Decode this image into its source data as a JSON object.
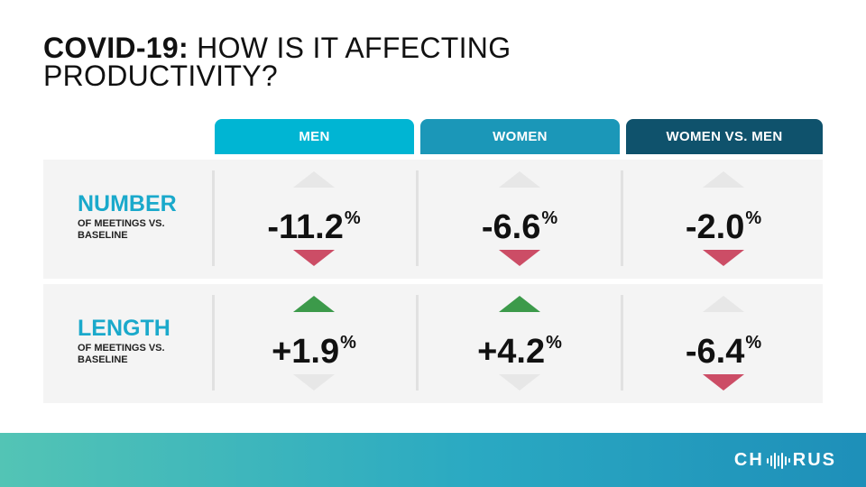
{
  "title": {
    "bold": "COVID-19:",
    "rest_line1": "HOW IS IT AFFECTING",
    "line2": "PRODUCTIVITY?"
  },
  "colors": {
    "men": "#00b5d3",
    "women": "#1b97b8",
    "women_vs_men": "#0f526c",
    "up": "#3c9a4a",
    "down": "#cc4d66",
    "inactive": "#e7e7e7",
    "accent": "#1aa9cb"
  },
  "columns": [
    {
      "label": "MEN"
    },
    {
      "label": "WOMEN"
    },
    {
      "label": "WOMEN VS. MEN"
    }
  ],
  "rows": [
    {
      "title": "NUMBER",
      "subtitle": "OF MEETINGS VS. BASELINE",
      "cells": [
        {
          "value": "-11.2",
          "unit": "%",
          "direction": "down"
        },
        {
          "value": "-6.6",
          "unit": "%",
          "direction": "down"
        },
        {
          "value": "-2.0",
          "unit": "%",
          "direction": "down"
        }
      ]
    },
    {
      "title": "LENGTH",
      "subtitle": "OF MEETINGS VS. BASELINE",
      "cells": [
        {
          "value": "+1.9",
          "unit": "%",
          "direction": "up"
        },
        {
          "value": "+4.2",
          "unit": "%",
          "direction": "up"
        },
        {
          "value": "-6.4",
          "unit": "%",
          "direction": "down"
        }
      ]
    }
  ],
  "footer": {
    "logo_left": "CH",
    "logo_right": "RUS",
    "logo_icon": "soundwave-icon"
  }
}
